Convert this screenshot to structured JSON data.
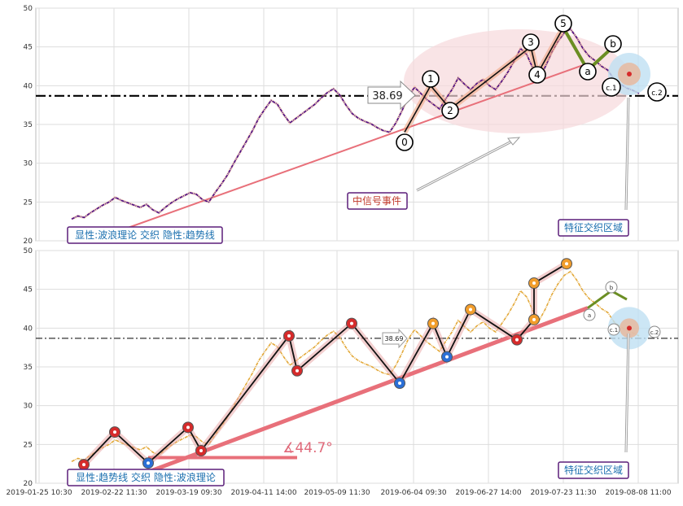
{
  "chart_data": [
    {
      "type": "line",
      "panel": "top",
      "ylim": [
        20,
        50
      ],
      "yticks": [
        20,
        25,
        30,
        35,
        40,
        45,
        50
      ],
      "xticks": [
        "2019-01-25 10:30",
        "2019-02-22 11:30",
        "2019-03-19 09:30",
        "2019-04-11 14:00",
        "2019-05-09 11:30",
        "2019-06-04 09:30",
        "2019-06-27 14:00",
        "2019-07-23 11:30",
        "2019-08-08 11:00"
      ],
      "grid": true,
      "price_series": [
        22.8,
        23.2,
        23.0,
        23.6,
        24.1,
        24.6,
        25.0,
        25.6,
        25.2,
        24.9,
        24.6,
        24.3,
        24.7,
        24.0,
        23.6,
        24.3,
        24.9,
        25.4,
        25.8,
        26.2,
        26.0,
        25.3,
        25.0,
        26.2,
        27.3,
        28.5,
        30.0,
        31.4,
        32.8,
        34.2,
        35.8,
        37.0,
        38.1,
        37.6,
        36.3,
        35.2,
        35.8,
        36.4,
        37.0,
        37.6,
        38.4,
        39.1,
        39.6,
        38.8,
        37.5,
        36.4,
        35.8,
        35.4,
        35.1,
        34.6,
        34.2,
        34.0,
        35.2,
        36.8,
        38.6,
        39.8,
        39.0,
        38.2,
        37.6,
        37.0,
        38.3,
        39.5,
        41.0,
        40.2,
        39.5,
        40.3,
        40.8,
        40.0,
        39.5,
        40.6,
        41.8,
        43.2,
        44.8,
        44.0,
        42.2,
        41.0,
        42.5,
        44.3,
        45.7,
        46.8,
        47.3,
        46.2,
        44.8,
        43.8,
        43.2,
        42.5,
        42.0,
        40.8,
        40.2,
        39.7,
        39.4,
        39.0
      ],
      "reference_level": 38.69,
      "reference_label": "38.69",
      "wave_points": [
        {
          "label": "0",
          "value": 34.0
        },
        {
          "label": "1",
          "value": 40.0
        },
        {
          "label": "2",
          "value": 37.0
        },
        {
          "label": "3",
          "value": 45.0
        },
        {
          "label": "4",
          "value": 41.5
        },
        {
          "label": "5",
          "value": 47.5
        },
        {
          "label": "a",
          "value": 42.0
        },
        {
          "label": "b",
          "value": 45.0
        },
        {
          "label": "c.1",
          "value": 41.0
        },
        {
          "label": "c.2",
          "value": 39.0
        }
      ],
      "annotations": {
        "event": "中信号事件",
        "zone": "特征交织区域",
        "legend": "显性:波浪理论 交织 隐性:趋势线"
      }
    },
    {
      "type": "line",
      "panel": "bottom",
      "ylim": [
        20,
        50
      ],
      "yticks": [
        20,
        25,
        30,
        35,
        40,
        45,
        50
      ],
      "xticks": [
        "2019-01-25 10:30",
        "2019-02-22 11:30",
        "2019-03-19 09:30",
        "2019-04-11 14:00",
        "2019-05-09 11:30",
        "2019-06-04 09:30",
        "2019-06-27 14:00",
        "2019-07-23 11:30",
        "2019-08-08 11:00"
      ],
      "grid": true,
      "reference_level": 38.69,
      "reference_label": "38.69",
      "trend_angle": "∡44.7°",
      "annotations": {
        "zone": "特征交织区域",
        "legend": "显性:趋势线 交织 隐性:波浪理论"
      },
      "small_labels": [
        "a",
        "b",
        "c.1",
        "c.2"
      ]
    }
  ],
  "colors": {
    "price_top": "#4b0f8a",
    "price_bottom": "#e3a93a",
    "trendline": "#e8707a",
    "wave_up": "#f0a07a",
    "wave_down": "#6b8e23",
    "zone_ellipse": "#f7d8dc",
    "zone_circle": "#bfe0f2",
    "label_text": "#1a6faf",
    "label_border": "#5b1f7a",
    "event_text": "#c0392b",
    "red_marker": "#d62b2b",
    "blue_marker": "#2b6fd6",
    "orange_marker": "#f29d2b"
  }
}
